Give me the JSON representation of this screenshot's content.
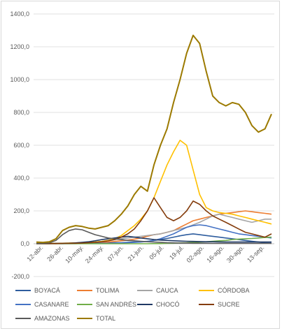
{
  "chart_data": {
    "type": "line",
    "title": "",
    "xlabel": "",
    "ylabel": "",
    "ylim": [
      -200,
      1400
    ],
    "yticks": [
      "-200,0",
      "0,0",
      "200,0",
      "400,0",
      "600,0",
      "800,0",
      "1000,0",
      "1200,0",
      "1400,0"
    ],
    "ytick_values": [
      -200,
      0,
      200,
      400,
      600,
      800,
      1000,
      1200,
      1400
    ],
    "xticks": [
      "12-abr.",
      "26-abr.",
      "10-may.",
      "24-may.",
      "07-jun.",
      "21-jun.",
      "05-jul.",
      "19-jul.",
      "02-ago.",
      "16-ago.",
      "30-ago.",
      "13-sep."
    ],
    "grid": true,
    "legend_position": "bottom",
    "series": [
      {
        "name": "BOYACÁ",
        "color": "#2e5d9e",
        "values": [
          2,
          1,
          1,
          2,
          1,
          2,
          3,
          2,
          2,
          3,
          4,
          5,
          6,
          6,
          8,
          10,
          12,
          15,
          20,
          25,
          32,
          40,
          48,
          55,
          60,
          55,
          50,
          45,
          40,
          35,
          30,
          25,
          20,
          15,
          10,
          5,
          3
        ]
      },
      {
        "name": "TOLIMA",
        "color": "#ed7d31",
        "values": [
          1,
          1,
          1,
          1,
          1,
          2,
          2,
          3,
          3,
          5,
          8,
          10,
          14,
          18,
          22,
          28,
          35,
          45,
          55,
          60,
          70,
          80,
          100,
          120,
          140,
          150,
          160,
          170,
          180,
          185,
          190,
          195,
          200,
          195,
          190,
          185,
          180
        ]
      },
      {
        "name": "CAUCA",
        "color": "#a5a5a5",
        "values": [
          3,
          2,
          2,
          3,
          3,
          4,
          5,
          6,
          8,
          10,
          14,
          20,
          25,
          30,
          35,
          40,
          45,
          50,
          55,
          60,
          70,
          80,
          90,
          100,
          115,
          130,
          150,
          170,
          180,
          170,
          160,
          150,
          140,
          130,
          140,
          150,
          150
        ]
      },
      {
        "name": "CÓRDOBA",
        "color": "#ffc000",
        "values": [
          2,
          2,
          2,
          2,
          3,
          4,
          5,
          6,
          8,
          10,
          14,
          20,
          30,
          50,
          80,
          110,
          150,
          200,
          280,
          380,
          480,
          560,
          630,
          600,
          450,
          300,
          220,
          200,
          190,
          185,
          180,
          170,
          160,
          150,
          140,
          130,
          120
        ]
      },
      {
        "name": "CASANARE",
        "color": "#4472c4",
        "values": [
          1,
          1,
          1,
          1,
          1,
          1,
          1,
          2,
          2,
          2,
          3,
          3,
          4,
          5,
          6,
          8,
          10,
          14,
          20,
          30,
          45,
          60,
          80,
          100,
          110,
          115,
          110,
          100,
          90,
          80,
          70,
          60,
          55,
          50,
          45,
          40,
          35
        ]
      },
      {
        "name": "SAN ANDRÉS",
        "color": "#70ad47",
        "values": [
          0,
          0,
          0,
          0,
          0,
          0,
          0,
          0,
          0,
          0,
          0,
          0,
          0,
          0,
          0,
          0,
          0,
          0,
          1,
          1,
          2,
          3,
          5,
          6,
          8,
          10,
          12,
          15,
          18,
          20,
          25,
          28,
          30,
          32,
          35,
          38,
          40
        ]
      },
      {
        "name": "CHOCÓ",
        "color": "#1f3864",
        "values": [
          1,
          1,
          1,
          2,
          2,
          3,
          5,
          8,
          12,
          18,
          25,
          30,
          35,
          40,
          45,
          40,
          35,
          30,
          25,
          22,
          20,
          18,
          16,
          15,
          14,
          13,
          12,
          12,
          11,
          10,
          10,
          10,
          10,
          10,
          10,
          10,
          10
        ]
      },
      {
        "name": "SUCRE",
        "color": "#843c0c",
        "values": [
          1,
          1,
          1,
          1,
          2,
          2,
          3,
          4,
          6,
          8,
          12,
          18,
          25,
          40,
          60,
          90,
          140,
          200,
          280,
          220,
          160,
          140,
          160,
          200,
          260,
          240,
          200,
          170,
          150,
          130,
          110,
          90,
          70,
          60,
          50,
          40,
          60
        ]
      },
      {
        "name": "AMAZONAS",
        "color": "#5a5a5a",
        "values": [
          2,
          2,
          5,
          20,
          55,
          80,
          90,
          85,
          70,
          55,
          45,
          35,
          30,
          25,
          20,
          18,
          15,
          12,
          10,
          8,
          6,
          5,
          4,
          4,
          3,
          3,
          3,
          2,
          2,
          2,
          2,
          2,
          2,
          2,
          2,
          2,
          2
        ]
      },
      {
        "name": "TOTAL",
        "color": "#9c7a00",
        "values": [
          10,
          8,
          12,
          30,
          80,
          100,
          110,
          105,
          95,
          90,
          100,
          110,
          140,
          180,
          230,
          300,
          350,
          320,
          480,
          600,
          700,
          860,
          1000,
          1160,
          1270,
          1220,
          1050,
          900,
          860,
          840,
          860,
          850,
          800,
          720,
          680,
          700,
          790
        ]
      }
    ]
  }
}
